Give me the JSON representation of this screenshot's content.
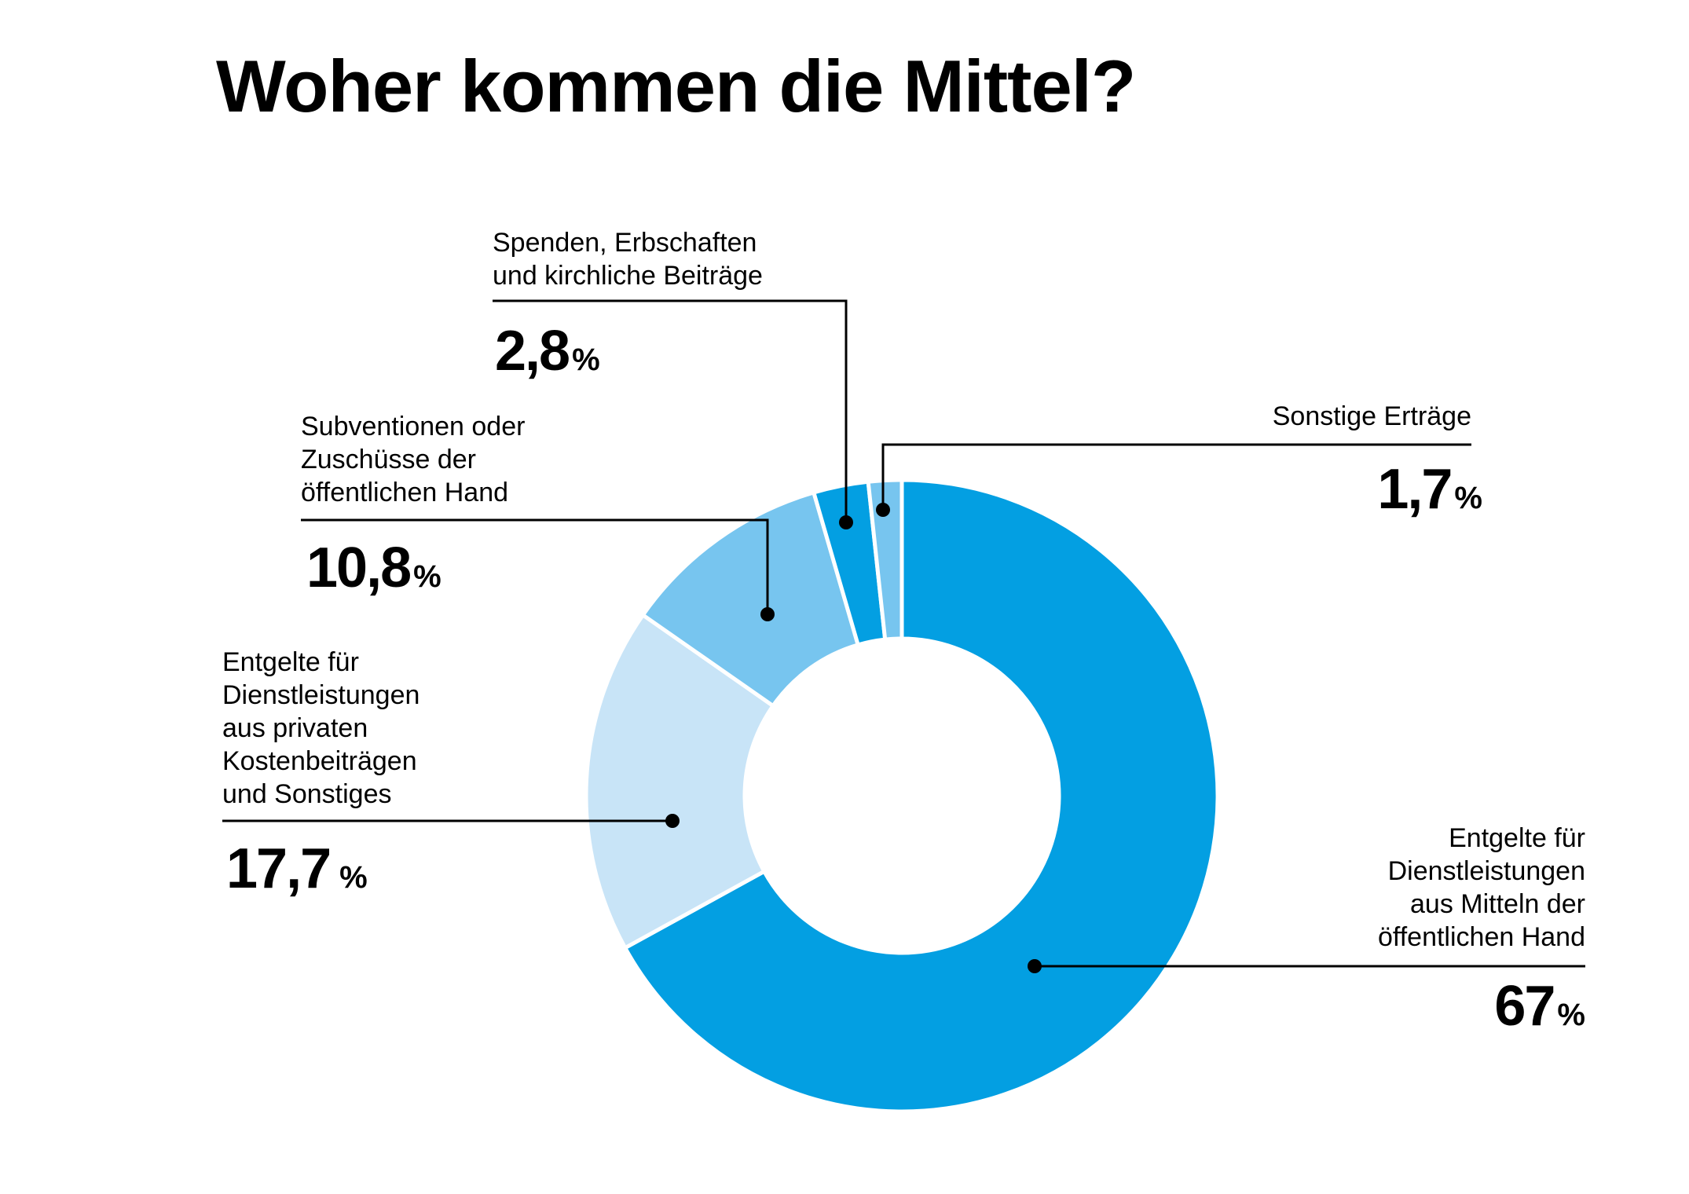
{
  "chart_data": {
    "type": "pie",
    "title": "Woher kommen die Mittel?",
    "slices": [
      {
        "label": "Entgelte für\nDienstleistungen\naus Mitteln der\nöffentlichen Hand",
        "value": 67,
        "value_text": "67",
        "unit": "%",
        "color": "#039fe2"
      },
      {
        "label": "Entgelte für\nDienstleistungen\naus privaten\nKostenbeiträgen\nund Sonstiges",
        "value": 17.7,
        "value_text": "17,7",
        "unit": "%",
        "color": "#c8e4f7"
      },
      {
        "label": "Subventionen oder\nZuschüsse der\nöffentlichen Hand",
        "value": 10.8,
        "value_text": "10,8",
        "unit": "%",
        "color": "#77c5ef"
      },
      {
        "label": "Spenden, Erbschaften\nund kirchliche Beiträge",
        "value": 2.8,
        "value_text": "2,8",
        "unit": "%",
        "color": "#039fe2"
      },
      {
        "label": "Sonstige Erträge",
        "value": 1.7,
        "value_text": "1,7",
        "unit": "%",
        "color": "#77c5ef"
      }
    ]
  }
}
